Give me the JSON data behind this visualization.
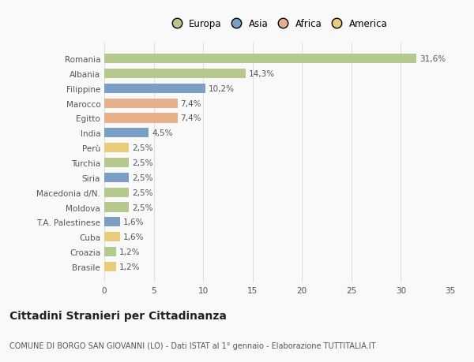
{
  "categories": [
    "Romania",
    "Albania",
    "Filippine",
    "Marocco",
    "Egitto",
    "India",
    "Perù",
    "Turchia",
    "Siria",
    "Macedonia d/N.",
    "Moldova",
    "T.A. Palestinese",
    "Cuba",
    "Croazia",
    "Brasile"
  ],
  "values": [
    31.6,
    14.3,
    10.2,
    7.4,
    7.4,
    4.5,
    2.5,
    2.5,
    2.5,
    2.5,
    2.5,
    1.6,
    1.6,
    1.2,
    1.2
  ],
  "labels": [
    "31,6%",
    "14,3%",
    "10,2%",
    "7,4%",
    "7,4%",
    "4,5%",
    "2,5%",
    "2,5%",
    "2,5%",
    "2,5%",
    "2,5%",
    "1,6%",
    "1,6%",
    "1,2%",
    "1,2%"
  ],
  "continents": [
    "Europa",
    "Europa",
    "Asia",
    "Africa",
    "Africa",
    "Asia",
    "America",
    "Europa",
    "Asia",
    "Europa",
    "Europa",
    "Asia",
    "America",
    "Europa",
    "America"
  ],
  "continent_colors": {
    "Europa": "#b5c98e",
    "Asia": "#7b9ec4",
    "Africa": "#e5b08a",
    "America": "#e8cc7a"
  },
  "legend_order": [
    "Europa",
    "Asia",
    "Africa",
    "America"
  ],
  "legend_colors": [
    "#b5c98e",
    "#7b9ec4",
    "#e5b08a",
    "#e8cc7a"
  ],
  "xlim": [
    0,
    35
  ],
  "xticks": [
    0,
    5,
    10,
    15,
    20,
    25,
    30,
    35
  ],
  "title": "Cittadini Stranieri per Cittadinanza",
  "subtitle": "COMUNE DI BORGO SAN GIOVANNI (LO) - Dati ISTAT al 1° gennaio - Elaborazione TUTTITALIA.IT",
  "background_color": "#f9f9f9",
  "bar_height": 0.65,
  "grid_color": "#dddddd",
  "text_color": "#555555",
  "label_fontsize": 7.5,
  "tick_fontsize": 7.5,
  "title_fontsize": 10,
  "subtitle_fontsize": 7.0,
  "legend_fontsize": 8.5
}
